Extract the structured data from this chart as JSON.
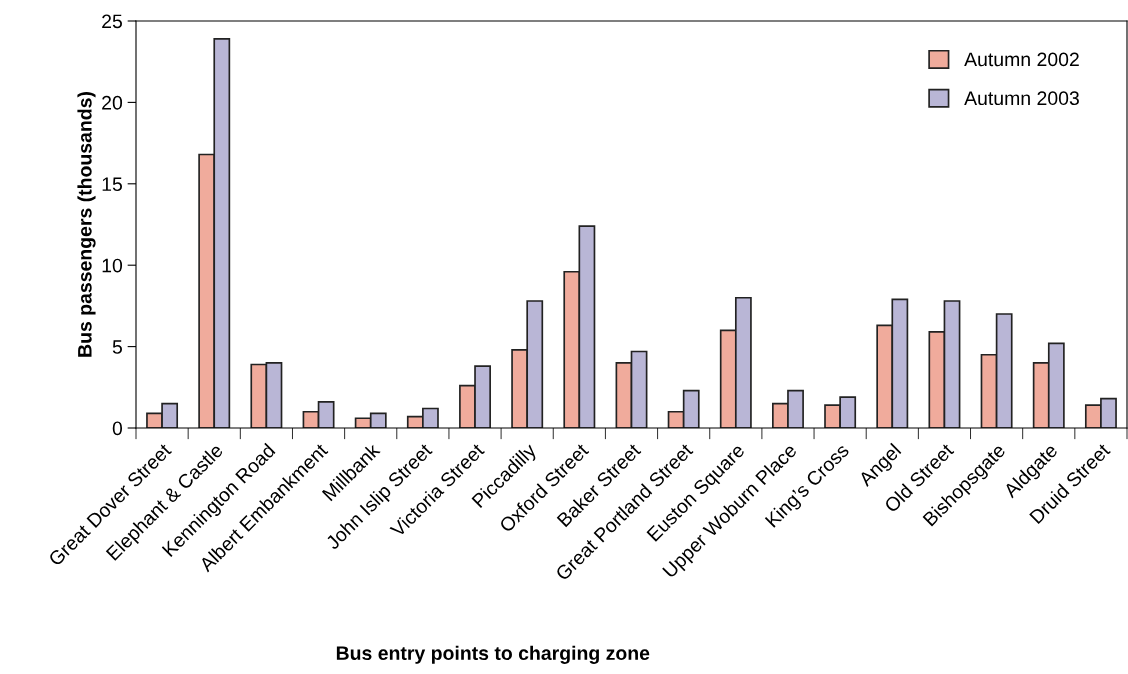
{
  "chart_data": {
    "type": "bar",
    "xlabel": "Bus entry points to charging zone",
    "ylabel": "Bus passengers (thousands)",
    "categories": [
      "Great Dover Street",
      "Elephant & Castle",
      "Kennington Road",
      "Albert Embankment",
      "Millbank",
      "John Islip Street",
      "Victoria Street",
      "Piccadilly",
      "Oxford Street",
      "Baker Street",
      "Great Portland Street",
      "Euston Square",
      "Upper Woburn Place",
      "King’s Cross",
      "Angel",
      "Old Street",
      "Bishopsgate",
      "Aldgate",
      "Druid Street"
    ],
    "series": [
      {
        "name": "Autumn 2002",
        "color": "#f0ab9c",
        "values": [
          0.9,
          16.8,
          3.9,
          1.0,
          0.6,
          0.7,
          2.6,
          4.8,
          9.6,
          4.0,
          1.0,
          6.0,
          1.5,
          1.4,
          6.3,
          5.9,
          4.5,
          4.0,
          1.4
        ]
      },
      {
        "name": "Autumn 2003",
        "color": "#b9b6d6",
        "values": [
          1.5,
          23.9,
          4.0,
          1.6,
          0.9,
          1.2,
          3.8,
          7.8,
          12.4,
          4.7,
          2.3,
          8.0,
          2.3,
          1.9,
          7.9,
          7.8,
          7.0,
          5.2,
          1.8
        ]
      }
    ],
    "ylim": [
      0,
      25
    ],
    "yticks": [
      0,
      5,
      10,
      15,
      20,
      25
    ],
    "grid": false,
    "legend": "top right"
  }
}
